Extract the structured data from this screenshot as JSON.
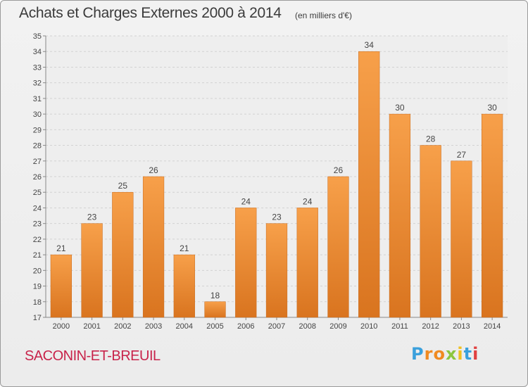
{
  "chart_data": {
    "type": "bar",
    "title": "Achats et Charges Externes 2000 à 2014",
    "subtitle": "(en milliers d'€)",
    "categories": [
      "2000",
      "2001",
      "2002",
      "2003",
      "2004",
      "2005",
      "2006",
      "2007",
      "2008",
      "2009",
      "2010",
      "2011",
      "2012",
      "2013",
      "2014"
    ],
    "values": [
      21,
      23,
      25,
      26,
      21,
      18,
      24,
      23,
      24,
      26,
      34,
      30,
      28,
      27,
      30
    ],
    "ylim": [
      17,
      35
    ],
    "yticks": [
      17,
      18,
      19,
      20,
      21,
      22,
      23,
      24,
      25,
      26,
      27,
      28,
      29,
      30,
      31,
      32,
      33,
      34,
      35
    ],
    "grid": true,
    "bar_color": "#f0963c",
    "bar_color_dark": "#d9741f"
  },
  "footer": {
    "commune": "SACONIN-ET-BREUIL",
    "brand_letters": [
      {
        "char": "P",
        "color": "#3aa0dc"
      },
      {
        "char": "r",
        "color": "#f08a20"
      },
      {
        "char": "o",
        "color": "#f08a20"
      },
      {
        "char": "x",
        "color": "#8cc63e"
      },
      {
        "char": "i",
        "color": "#f0c020"
      },
      {
        "char": "t",
        "color": "#3aa0dc"
      },
      {
        "char": "i",
        "color": "#e04040"
      }
    ]
  }
}
